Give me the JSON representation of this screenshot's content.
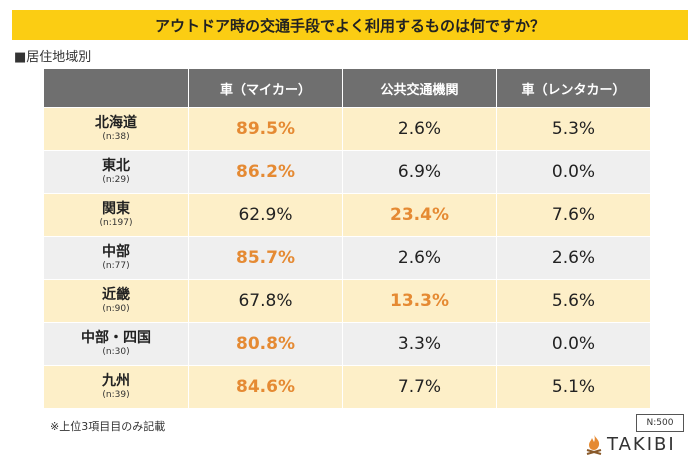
{
  "title": "アウトドア時の交通手段でよく利用するものは何ですか？",
  "section_label": "■居住地域別",
  "columns": [
    "車（マイカー）",
    "公共交通機関",
    "車（レンタカー）"
  ],
  "rows": [
    {
      "region": "北海道",
      "n": "(n:38)",
      "values": [
        "89.5%",
        "2.6%",
        "5.3%"
      ],
      "highlight": [
        0
      ]
    },
    {
      "region": "東北",
      "n": "(n:29)",
      "values": [
        "86.2%",
        "6.9%",
        "0.0%"
      ],
      "highlight": [
        0
      ]
    },
    {
      "region": "関東",
      "n": "(n:197)",
      "values": [
        "62.9%",
        "23.4%",
        "7.6%"
      ],
      "highlight": [
        1
      ]
    },
    {
      "region": "中部",
      "n": "(n:77)",
      "values": [
        "85.7%",
        "2.6%",
        "2.6%"
      ],
      "highlight": [
        0
      ]
    },
    {
      "region": "近畿",
      "n": "(n:90)",
      "values": [
        "67.8%",
        "13.3%",
        "5.6%"
      ],
      "highlight": [
        1
      ]
    },
    {
      "region": "中部・四国",
      "n": "(n:30)",
      "values": [
        "80.8%",
        "3.3%",
        "0.0%"
      ],
      "highlight": [
        0
      ]
    },
    {
      "region": "九州",
      "n": "(n:39)",
      "values": [
        "84.6%",
        "7.7%",
        "5.1%"
      ],
      "highlight": [
        0
      ]
    }
  ],
  "footnote": "※上位3項目目のみ記載",
  "sample_size": "N:500",
  "logo": {
    "text": "TAKIBI",
    "icon": "flame-icon"
  },
  "colors": {
    "title_bg": "#fbcd13",
    "header_bg": "#6f6f6f",
    "row_yellow": "#fdefc8",
    "row_gray": "#efefef",
    "highlight": "#e58a33"
  }
}
